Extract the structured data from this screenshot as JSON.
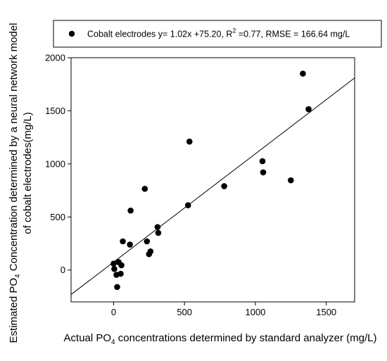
{
  "chart_data": {
    "type": "scatter",
    "title": "",
    "xlabel": {
      "prefix": "Actual PO",
      "sub": "4",
      "suffix": " concentrations determined by standard analyzer (mg/L)"
    },
    "ylabel": {
      "line1_prefix": "Estimated PO",
      "line1_sub": "4",
      "line1_suffix": " Concentration determined by a neural network model",
      "line2": "of cobalt electrodes(mg/L)"
    },
    "xlim": [
      -300,
      1700
    ],
    "ylim": [
      -300,
      2000
    ],
    "xticks": [
      0,
      500,
      1000,
      1500
    ],
    "yticks": [
      0,
      500,
      1000,
      1500,
      2000
    ],
    "grid": false,
    "legend": {
      "placement": "top",
      "marker_color": "#000000",
      "text_prefix": "Cobalt electrodes y= 1.02x +75.20, R",
      "text_sup": "2",
      "text_suffix": " =0.77, RMSE = 166.64 mg/L"
    },
    "series": [
      {
        "name": "Cobalt electrodes",
        "marker": "circle",
        "color": "#000000",
        "fit": {
          "slope": 1.02,
          "intercept": 75.2
        },
        "points": [
          {
            "x": 0,
            "y": 60
          },
          {
            "x": 5,
            "y": 10
          },
          {
            "x": 20,
            "y": -45
          },
          {
            "x": 25,
            "y": -160
          },
          {
            "x": 35,
            "y": 75
          },
          {
            "x": 50,
            "y": -35
          },
          {
            "x": 55,
            "y": 45
          },
          {
            "x": 65,
            "y": 270
          },
          {
            "x": 115,
            "y": 240
          },
          {
            "x": 120,
            "y": 560
          },
          {
            "x": 220,
            "y": 765
          },
          {
            "x": 235,
            "y": 270
          },
          {
            "x": 250,
            "y": 150
          },
          {
            "x": 260,
            "y": 175
          },
          {
            "x": 310,
            "y": 405
          },
          {
            "x": 315,
            "y": 350
          },
          {
            "x": 525,
            "y": 610
          },
          {
            "x": 535,
            "y": 1210
          },
          {
            "x": 780,
            "y": 790
          },
          {
            "x": 1050,
            "y": 1025
          },
          {
            "x": 1055,
            "y": 920
          },
          {
            "x": 1250,
            "y": 845
          },
          {
            "x": 1335,
            "y": 1850
          },
          {
            "x": 1375,
            "y": 1515
          }
        ]
      }
    ]
  }
}
